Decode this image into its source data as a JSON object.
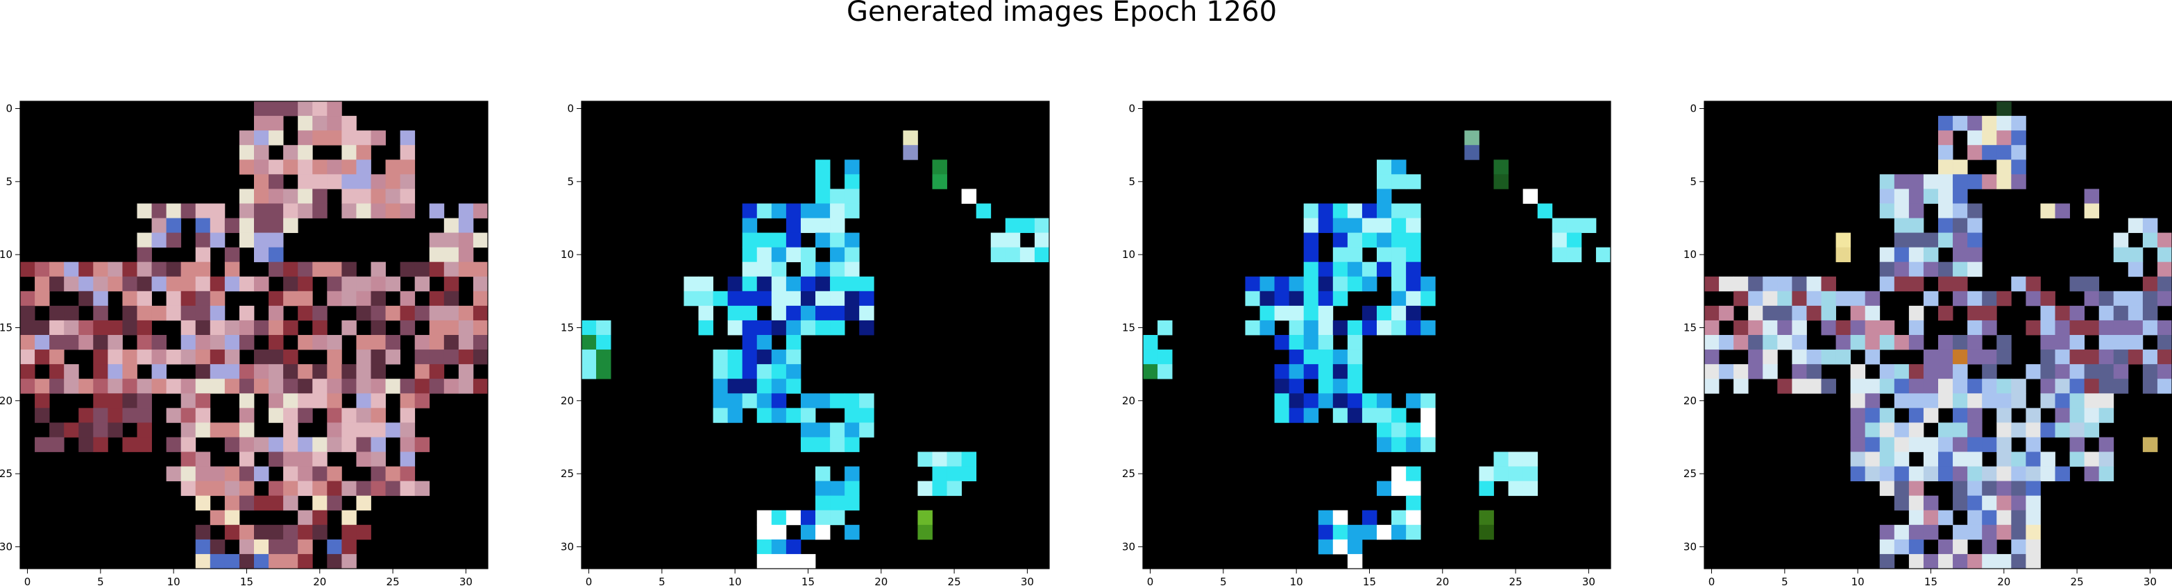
{
  "figure": {
    "title": "Generated images Epoch 1260",
    "background": "#ffffff"
  },
  "chart_data": {
    "type": "heatmap",
    "title": "Generated images Epoch 1260",
    "grid": false,
    "panels": [
      {
        "name": "",
        "xlim": [
          -0.5,
          31.5
        ],
        "ylim": [
          31.5,
          -0.5
        ],
        "x_ticks": [
          0,
          5,
          10,
          15,
          20,
          25,
          30
        ],
        "y_ticks": [
          0,
          5,
          10,
          15,
          20,
          25,
          30
        ],
        "x_tick_labels": [
          "0",
          "5",
          "10",
          "15",
          "20",
          "25",
          "30"
        ],
        "y_tick_labels": [
          "0",
          "5",
          "10",
          "15",
          "20",
          "25",
          "30"
        ],
        "background": "#000000",
        "palette": [
          "#c79aa8",
          "#e3b9c0",
          "#c48a9a",
          "#7f4a62",
          "#a6a8e0",
          "#4f6fc8",
          "#e9e4d2",
          "#d28a8a",
          "#8a2f3a",
          "#f3e6c6",
          "#5a2e3f",
          "#b05c6a"
        ],
        "blocks": [
          {
            "r0": 0,
            "r1": 2,
            "c0": 16,
            "c1": 23,
            "p": [
              0,
              3,
              1,
              2,
              6
            ]
          },
          {
            "r0": 2,
            "r1": 8,
            "c0": 15,
            "c1": 27,
            "p": [
              1,
              0,
              2,
              6,
              7,
              3,
              4
            ]
          },
          {
            "r0": 7,
            "r1": 11,
            "c0": 8,
            "c1": 19,
            "p": [
              0,
              4,
              5,
              6,
              3,
              1
            ]
          },
          {
            "r0": 7,
            "r1": 11,
            "c0": 28,
            "c1": 32,
            "p": [
              4,
              6,
              0,
              2
            ]
          },
          {
            "r0": 11,
            "r1": 20,
            "c0": 0,
            "c1": 16,
            "p": [
              7,
              8,
              0,
              3,
              1,
              4,
              11,
              2,
              10
            ]
          },
          {
            "r0": 11,
            "r1": 20,
            "c0": 16,
            "c1": 32,
            "p": [
              10,
              3,
              8,
              2,
              0,
              7
            ]
          },
          {
            "r0": 19,
            "r1": 27,
            "c0": 10,
            "c1": 28,
            "p": [
              4,
              6,
              0,
              1,
              3,
              2,
              7,
              11
            ]
          },
          {
            "r0": 26,
            "r1": 32,
            "c0": 12,
            "c1": 24,
            "p": [
              5,
              8,
              7,
              10,
              0,
              9,
              3
            ]
          },
          {
            "r0": 20,
            "r1": 24,
            "c0": 1,
            "c1": 9,
            "p": [
              10,
              3,
              8
            ]
          }
        ],
        "sparse": 0.22
      },
      {
        "name": "",
        "xlim": [
          -0.5,
          31.5
        ],
        "ylim": [
          31.5,
          -0.5
        ],
        "x_ticks": [
          0,
          5,
          10,
          15,
          20,
          25,
          30
        ],
        "y_ticks": [
          0,
          5,
          10,
          15,
          20,
          25,
          30
        ],
        "x_tick_labels": [
          "0",
          "5",
          "10",
          "15",
          "20",
          "25",
          "30"
        ],
        "y_tick_labels": [
          "0",
          "5",
          "10",
          "15",
          "20",
          "25",
          "30"
        ],
        "background": "#000000",
        "palette": [
          "#2ee6f0",
          "#7df0f5",
          "#1aa8e8",
          "#0a30d0",
          "#0a1a80",
          "#bff7fa",
          "#ffffff",
          "#1c8a3a"
        ],
        "blocks": [
          {
            "r0": 4,
            "r1": 8,
            "c0": 16,
            "c1": 19,
            "p": [
              0,
              2,
              1
            ]
          },
          {
            "r0": 7,
            "r1": 12,
            "c0": 11,
            "c1": 19,
            "p": [
              0,
              1,
              2,
              3,
              5
            ]
          },
          {
            "r0": 8,
            "r1": 11,
            "c0": 28,
            "c1": 32,
            "p": [
              1,
              5,
              0
            ]
          },
          {
            "r0": 12,
            "r1": 16,
            "c0": 7,
            "c1": 20,
            "p": [
              0,
              1,
              5,
              2,
              3,
              4
            ]
          },
          {
            "r0": 16,
            "r1": 22,
            "c0": 9,
            "c1": 15,
            "p": [
              0,
              3,
              2,
              4,
              1
            ]
          },
          {
            "r0": 20,
            "r1": 24,
            "c0": 15,
            "c1": 20,
            "p": [
              0,
              1,
              6,
              2
            ]
          },
          {
            "r0": 24,
            "r1": 27,
            "c0": 23,
            "c1": 27,
            "p": [
              0,
              1,
              5
            ]
          },
          {
            "r0": 25,
            "r1": 30,
            "c0": 16,
            "c1": 19,
            "p": [
              0,
              1,
              2,
              6
            ]
          },
          {
            "r0": 28,
            "r1": 32,
            "c0": 12,
            "c1": 16,
            "p": [
              0,
              3,
              2,
              6
            ]
          },
          {
            "r0": 15,
            "r1": 19,
            "c0": 0,
            "c1": 2,
            "p": [
              0,
              1,
              7
            ]
          }
        ],
        "sparse": 0.2,
        "extra": [
          {
            "r": 2,
            "c": 22,
            "color": "#e9e8c0"
          },
          {
            "r": 3,
            "c": 22,
            "color": "#8a92c8"
          },
          {
            "r": 4,
            "c": 24,
            "color": "#1c8a3a"
          },
          {
            "r": 5,
            "c": 24,
            "color": "#1fa04a"
          },
          {
            "r": 6,
            "c": 26,
            "color": "#ffffff"
          },
          {
            "r": 28,
            "c": 23,
            "color": "#6ab82a"
          },
          {
            "r": 29,
            "c": 23,
            "color": "#4a9820"
          },
          {
            "r": 7,
            "c": 27,
            "color": "#2ee6f0"
          }
        ]
      },
      {
        "name": "",
        "xlim": [
          -0.5,
          31.5
        ],
        "ylim": [
          31.5,
          -0.5
        ],
        "x_ticks": [
          0,
          5,
          10,
          15,
          20,
          25,
          30
        ],
        "y_ticks": [
          0,
          5,
          10,
          15,
          20,
          25,
          30
        ],
        "x_tick_labels": [
          "0",
          "5",
          "10",
          "15",
          "20",
          "25",
          "30"
        ],
        "y_tick_labels": [
          "0",
          "5",
          "10",
          "15",
          "20",
          "25",
          "30"
        ],
        "background": "#000000",
        "palette": [
          "#2ee6f0",
          "#7df0f5",
          "#1aa8e8",
          "#0a30d0",
          "#0a1a80",
          "#bff7fa",
          "#ffffff",
          "#1c8a3a"
        ],
        "blocks": [
          {
            "r0": 4,
            "r1": 8,
            "c0": 16,
            "c1": 19,
            "p": [
              0,
              2,
              1
            ]
          },
          {
            "r0": 7,
            "r1": 12,
            "c0": 11,
            "c1": 19,
            "p": [
              0,
              1,
              2,
              3,
              5
            ]
          },
          {
            "r0": 8,
            "r1": 11,
            "c0": 28,
            "c1": 32,
            "p": [
              1,
              5,
              0
            ]
          },
          {
            "r0": 12,
            "r1": 16,
            "c0": 7,
            "c1": 20,
            "p": [
              0,
              1,
              5,
              2,
              3,
              4
            ]
          },
          {
            "r0": 16,
            "r1": 22,
            "c0": 9,
            "c1": 15,
            "p": [
              0,
              3,
              2,
              4,
              1
            ]
          },
          {
            "r0": 20,
            "r1": 24,
            "c0": 15,
            "c1": 20,
            "p": [
              0,
              1,
              6,
              2
            ]
          },
          {
            "r0": 24,
            "r1": 27,
            "c0": 23,
            "c1": 27,
            "p": [
              0,
              1,
              5
            ]
          },
          {
            "r0": 25,
            "r1": 30,
            "c0": 16,
            "c1": 19,
            "p": [
              0,
              1,
              2,
              6
            ]
          },
          {
            "r0": 28,
            "r1": 32,
            "c0": 12,
            "c1": 16,
            "p": [
              0,
              3,
              2,
              6
            ]
          },
          {
            "r0": 15,
            "r1": 19,
            "c0": 0,
            "c1": 2,
            "p": [
              0,
              1,
              7
            ]
          }
        ],
        "sparse": 0.22,
        "extra": [
          {
            "r": 2,
            "c": 22,
            "color": "#7ab89a"
          },
          {
            "r": 3,
            "c": 22,
            "color": "#4a60a0"
          },
          {
            "r": 4,
            "c": 24,
            "color": "#1c6a2a"
          },
          {
            "r": 5,
            "c": 24,
            "color": "#1a5a20"
          },
          {
            "r": 6,
            "c": 26,
            "color": "#ffffff"
          },
          {
            "r": 28,
            "c": 23,
            "color": "#3a7a18"
          },
          {
            "r": 29,
            "c": 23,
            "color": "#2a6010"
          },
          {
            "r": 7,
            "c": 27,
            "color": "#2ee6f0"
          }
        ]
      },
      {
        "name": "",
        "xlim": [
          -0.5,
          31.5
        ],
        "ylim": [
          31.5,
          -0.5
        ],
        "x_ticks": [
          0,
          5,
          10,
          15,
          20,
          25,
          30
        ],
        "y_ticks": [
          0,
          5,
          10,
          15,
          20,
          25,
          30
        ],
        "x_tick_labels": [
          "0",
          "5",
          "10",
          "15",
          "20",
          "25",
          "30"
        ],
        "y_tick_labels": [
          "0",
          "5",
          "10",
          "15",
          "20",
          "25",
          "30"
        ],
        "background": "#000000",
        "palette": [
          "#a9c4f0",
          "#d8ecf5",
          "#9fd8e8",
          "#7f6aa8",
          "#c88aa0",
          "#e6e6e6",
          "#4f6fc8",
          "#8a3a4a",
          "#f0e8c0",
          "#5a6090",
          "#b7d0e8"
        ],
        "blocks": [
          {
            "r0": 1,
            "r1": 6,
            "c0": 16,
            "c1": 22,
            "p": [
              0,
              1,
              4,
              6,
              8,
              3
            ]
          },
          {
            "r0": 5,
            "r1": 12,
            "c0": 12,
            "c1": 19,
            "p": [
              0,
              2,
              1,
              6,
              9,
              3
            ]
          },
          {
            "r0": 6,
            "r1": 8,
            "c0": 22,
            "c1": 27,
            "p": [
              4,
              1,
              8,
              3
            ]
          },
          {
            "r0": 8,
            "r1": 12,
            "c0": 28,
            "c1": 32,
            "p": [
              1,
              2,
              0,
              4
            ]
          },
          {
            "r0": 12,
            "r1": 20,
            "c0": 0,
            "c1": 16,
            "p": [
              2,
              1,
              0,
              7,
              4,
              3,
              5,
              9
            ]
          },
          {
            "r0": 12,
            "r1": 20,
            "c0": 16,
            "c1": 32,
            "p": [
              9,
              3,
              0,
              7
            ]
          },
          {
            "r0": 19,
            "r1": 26,
            "c0": 10,
            "c1": 28,
            "p": [
              1,
              2,
              0,
              5,
              10,
              3,
              6
            ]
          },
          {
            "r0": 26,
            "r1": 32,
            "c0": 12,
            "c1": 23,
            "p": [
              6,
              4,
              0,
              5,
              3,
              9,
              1
            ]
          }
        ],
        "sparse": 0.28,
        "extra": [
          {
            "r": 9,
            "c": 9,
            "color": "#f3e6a0"
          },
          {
            "r": 10,
            "c": 9,
            "color": "#e8d890"
          },
          {
            "r": 17,
            "c": 17,
            "color": "#c87a2a"
          },
          {
            "r": 29,
            "c": 22,
            "color": "#f5eac0"
          },
          {
            "r": 23,
            "c": 30,
            "color": "#c8b060"
          },
          {
            "r": 0,
            "c": 20,
            "color": "#1a4020"
          }
        ]
      }
    ]
  }
}
